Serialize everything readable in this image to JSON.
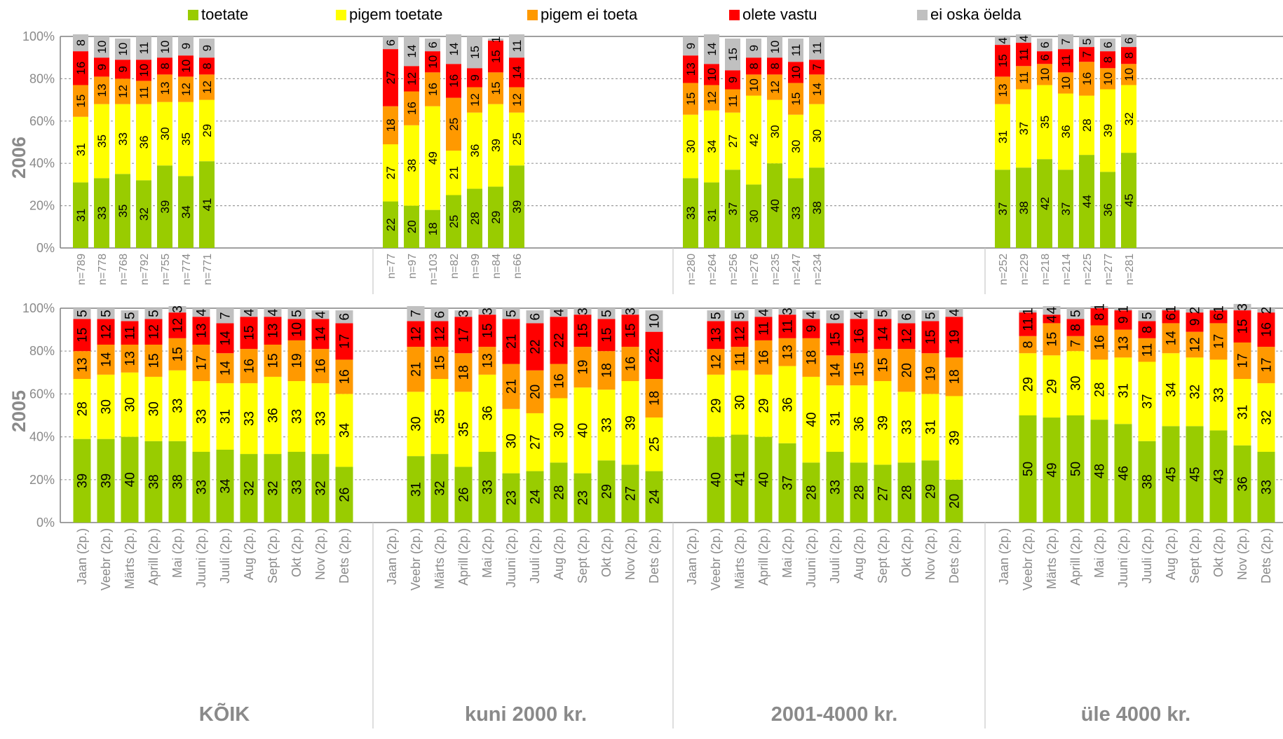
{
  "legend": [
    {
      "label": "toetate",
      "color": "#99cc00"
    },
    {
      "label": "pigem toetate",
      "color": "#ffff00"
    },
    {
      "label": "pigem ei toeta",
      "color": "#ff9900"
    },
    {
      "label": "olete vastu",
      "color": "#ff0000"
    },
    {
      "label": "ei oska öelda",
      "color": "#c0c0c0"
    }
  ],
  "groups": [
    "KÕIK",
    "kuni 2000 kr.",
    "2001-4000 kr.",
    "üle 4000 kr."
  ],
  "years": [
    "2006",
    "2005"
  ],
  "chart_data": [
    {
      "type": "bar",
      "stacked": true,
      "year": "2006",
      "yticks": [
        "0%",
        "20%",
        "40%",
        "60%",
        "80%",
        "100%"
      ],
      "ylim": [
        0,
        100
      ],
      "series_names": [
        "toetate",
        "pigem toetate",
        "pigem ei toeta",
        "olete vastu",
        "ei oska öelda"
      ],
      "groups": [
        {
          "name": "KÕIK",
          "categories": [
            "n=789",
            "n=778",
            "n=768",
            "n=792",
            "n=755",
            "n=774",
            "n=771",
            "",
            "",
            ""
          ],
          "values": [
            [
              31,
              31,
              15,
              16,
              8
            ],
            [
              33,
              35,
              13,
              9,
              10
            ],
            [
              35,
              33,
              12,
              9,
              10
            ],
            [
              32,
              36,
              11,
              10,
              11
            ],
            [
              39,
              30,
              13,
              8,
              10
            ],
            [
              34,
              35,
              12,
              10,
              9
            ],
            [
              41,
              29,
              12,
              8,
              9
            ],
            null,
            null,
            null
          ]
        },
        {
          "name": "kuni 2000 kr.",
          "categories": [
            "n=77",
            "n=97",
            "n=103",
            "n=82",
            "n=99",
            "n=84",
            "n=66",
            "",
            "",
            ""
          ],
          "values": [
            [
              22,
              27,
              18,
              27,
              6
            ],
            [
              20,
              38,
              16,
              12,
              14
            ],
            [
              18,
              49,
              16,
              10,
              6
            ],
            [
              25,
              21,
              25,
              16,
              14
            ],
            [
              28,
              36,
              12,
              9,
              15
            ],
            [
              29,
              39,
              15,
              15,
              1
            ],
            [
              39,
              25,
              12,
              14,
              11
            ],
            null,
            null,
            null
          ]
        },
        {
          "name": "2001-4000 kr.",
          "categories": [
            "n=280",
            "n=264",
            "n=256",
            "n=276",
            "n=235",
            "n=247",
            "n=234",
            "",
            "",
            ""
          ],
          "values": [
            [
              33,
              30,
              15,
              13,
              9
            ],
            [
              31,
              34,
              12,
              10,
              14
            ],
            [
              37,
              27,
              11,
              9,
              15
            ],
            [
              30,
              42,
              10,
              8,
              9
            ],
            [
              40,
              30,
              12,
              8,
              10
            ],
            [
              33,
              30,
              15,
              10,
              11
            ],
            [
              38,
              30,
              14,
              7,
              11
            ],
            null,
            null,
            null
          ]
        },
        {
          "name": "üle 4000 kr.",
          "categories": [
            "n=252",
            "n=229",
            "n=218",
            "n=214",
            "n=225",
            "n=277",
            "n=281",
            "",
            "",
            ""
          ],
          "values": [
            [
              37,
              31,
              13,
              15,
              4
            ],
            [
              38,
              37,
              11,
              11,
              4
            ],
            [
              42,
              35,
              10,
              6,
              6
            ],
            [
              37,
              36,
              10,
              11,
              7
            ],
            [
              44,
              28,
              16,
              7,
              5
            ],
            [
              36,
              39,
              10,
              8,
              6
            ],
            [
              45,
              32,
              10,
              8,
              6
            ],
            null,
            null,
            null
          ]
        }
      ]
    },
    {
      "type": "bar",
      "stacked": true,
      "year": "2005",
      "yticks": [
        "0%",
        "20%",
        "40%",
        "60%",
        "80%",
        "100%"
      ],
      "ylim": [
        0,
        100
      ],
      "series_names": [
        "toetate",
        "pigem toetate",
        "pigem ei toeta",
        "olete vastu",
        "ei oska öelda"
      ],
      "groups": [
        {
          "name": "KÕIK",
          "categories": [
            "Jaan (2p.)",
            "Veebr (2p.)",
            "Märts (2p.)",
            "Aprill (2p.)",
            "Mai (2p.)",
            "Juuni (2p.)",
            "Juuli (2p.)",
            "Aug (2p.)",
            "Sept (2p.)",
            "Okt (2p.)",
            "Nov (2p.)",
            "Dets (2p.)"
          ],
          "values": [
            [
              39,
              28,
              13,
              15,
              5
            ],
            [
              39,
              30,
              14,
              12,
              5
            ],
            [
              40,
              30,
              13,
              11,
              5
            ],
            [
              38,
              30,
              15,
              12,
              5
            ],
            [
              38,
              33,
              15,
              12,
              3
            ],
            [
              33,
              33,
              17,
              13,
              4
            ],
            [
              34,
              31,
              14,
              14,
              7
            ],
            [
              32,
              33,
              16,
              15,
              4
            ],
            [
              32,
              36,
              15,
              13,
              4
            ],
            [
              33,
              33,
              19,
              10,
              5
            ],
            [
              32,
              33,
              16,
              14,
              4
            ],
            [
              26,
              34,
              16,
              17,
              6
            ]
          ]
        },
        {
          "name": "kuni 2000 kr.",
          "categories": [
            "Jaan (2p.)",
            "Veebr (2p.)",
            "Märts (2p.)",
            "Aprill (2p.)",
            "Mai (2p.)",
            "Juuni (2p.)",
            "Juuli (2p.)",
            "Aug (2p.)",
            "Sept (2p.)",
            "Okt (2p.)",
            "Nov (2p.)",
            "Dets (2p.)"
          ],
          "values": [
            null,
            [
              31,
              30,
              21,
              12,
              7
            ],
            [
              32,
              35,
              15,
              12,
              6
            ],
            [
              26,
              35,
              18,
              17,
              3
            ],
            [
              33,
              36,
              13,
              15,
              3
            ],
            [
              23,
              30,
              21,
              21,
              5
            ],
            [
              24,
              27,
              20,
              22,
              6
            ],
            [
              28,
              30,
              16,
              22,
              4
            ],
            [
              23,
              40,
              19,
              15,
              3
            ],
            [
              29,
              33,
              18,
              15,
              5
            ],
            [
              27,
              39,
              16,
              15,
              3
            ],
            [
              24,
              25,
              18,
              22,
              10
            ]
          ]
        },
        {
          "name": "2001-4000 kr.",
          "categories": [
            "Jaan (2p.)",
            "Veebr (2p.)",
            "Märts (2p.)",
            "Aprill (2p.)",
            "Mai (2p.)",
            "Juuni (2p.)",
            "Juuli (2p.)",
            "Aug (2p.)",
            "Sept (2p.)",
            "Okt (2p.)",
            "Nov (2p.)",
            "Dets (2p.)"
          ],
          "values": [
            null,
            [
              40,
              29,
              12,
              13,
              5
            ],
            [
              41,
              30,
              11,
              12,
              5
            ],
            [
              40,
              29,
              16,
              11,
              4
            ],
            [
              37,
              36,
              13,
              11,
              3
            ],
            [
              28,
              40,
              18,
              9,
              4
            ],
            [
              33,
              31,
              14,
              15,
              6
            ],
            [
              28,
              36,
              15,
              16,
              4
            ],
            [
              27,
              39,
              15,
              14,
              5
            ],
            [
              28,
              33,
              20,
              12,
              6
            ],
            [
              29,
              31,
              19,
              15,
              5
            ],
            [
              20,
              39,
              18,
              19,
              4
            ]
          ]
        },
        {
          "name": "üle 4000 kr.",
          "categories": [
            "Jaan (2p.)",
            "Veebr (2p.)",
            "Märts (2p.)",
            "Aprill (2p.)",
            "Mai (2p.)",
            "Juuni (2p.)",
            "Juuli (2p.)",
            "Aug (2p.)",
            "Sept (2p.)",
            "Okt (2p.)",
            "Nov (2p.)",
            "Dets (2p.)"
          ],
          "values": [
            null,
            [
              50,
              29,
              8,
              11,
              1
            ],
            [
              49,
              29,
              15,
              4,
              4
            ],
            [
              50,
              30,
              7,
              8,
              5
            ],
            [
              48,
              28,
              16,
              8,
              1
            ],
            [
              46,
              31,
              13,
              9,
              1
            ],
            [
              38,
              37,
              11,
              8,
              5
            ],
            [
              45,
              34,
              14,
              6,
              1
            ],
            [
              45,
              32,
              12,
              9,
              2
            ],
            [
              43,
              33,
              17,
              6,
              1
            ],
            [
              36,
              31,
              17,
              15,
              3
            ],
            [
              33,
              32,
              17,
              16,
              2
            ]
          ]
        }
      ]
    }
  ]
}
